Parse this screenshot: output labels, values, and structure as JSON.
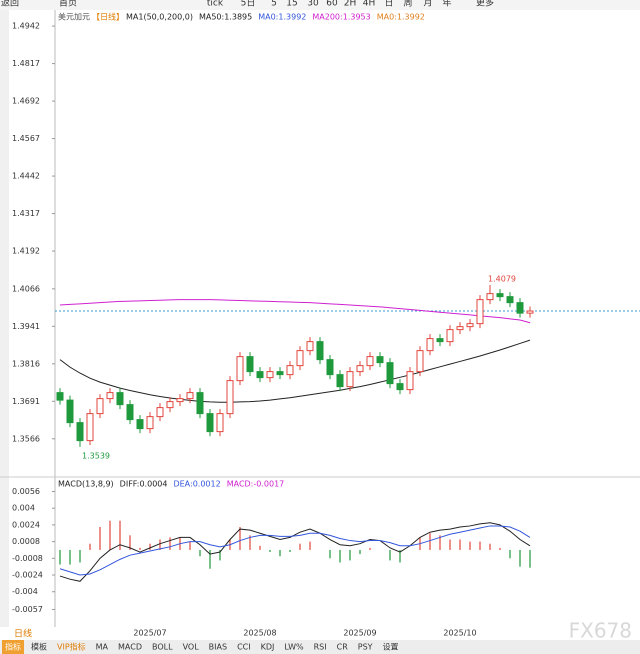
{
  "toolbar": {
    "items": [
      "返回",
      "首页",
      "tick",
      "5日",
      "5",
      "15",
      "30",
      "60",
      "2H",
      "4H",
      "日",
      "周",
      "月",
      "年",
      "更多"
    ]
  },
  "tabs": {
    "period": "日线",
    "items": [
      "指标",
      "模板",
      "VIP指标",
      "MA",
      "MACD",
      "BOLL",
      "VOL",
      "BIAS",
      "CCI",
      "KDJ",
      "LW%",
      "RSI",
      "CR",
      "PSY",
      "设置"
    ]
  },
  "watermark": "FX678",
  "chart_data": [
    {
      "type": "candlestick",
      "symbol": "美元加元",
      "period_label": "【日线】",
      "legend_items": [
        {
          "label": "MA1(50,0,200,0)",
          "color": "#222222"
        },
        {
          "label": "MA50:1.3895",
          "color": "#222222"
        },
        {
          "label": "MA0:1.3992",
          "color": "#3355dd"
        },
        {
          "label": "MA200:1.3953",
          "color": "#d020d0"
        },
        {
          "label": "MA0:1.3992",
          "color": "#e08020"
        }
      ],
      "ylim": [
        1.3462,
        1.4989
      ],
      "yticks": [
        1.4942,
        1.4817,
        1.4692,
        1.4567,
        1.4442,
        1.4317,
        1.4192,
        1.4066,
        1.3941,
        1.3816,
        1.3691,
        1.3566
      ],
      "up_color": "#e2463c",
      "down_color": "#1e9a3c",
      "open": [
        1.372,
        1.3695,
        1.362,
        1.356,
        1.365,
        1.37,
        1.372,
        1.368,
        1.363,
        1.36,
        1.364,
        1.367,
        1.369,
        1.37,
        1.372,
        1.365,
        1.359,
        1.365,
        1.376,
        1.384,
        1.379,
        1.377,
        1.379,
        1.378,
        1.381,
        1.386,
        1.389,
        1.383,
        1.378,
        1.374,
        1.379,
        1.381,
        1.384,
        1.382,
        1.375,
        1.373,
        1.379,
        1.386,
        1.39,
        1.389,
        1.393,
        1.394,
        1.395,
        1.403,
        1.405,
        1.404,
        1.402,
        1.3985
      ],
      "high": [
        1.3735,
        1.371,
        1.3635,
        1.3665,
        1.3715,
        1.3735,
        1.3735,
        1.3695,
        1.3645,
        1.3655,
        1.3685,
        1.3705,
        1.3715,
        1.3735,
        1.3735,
        1.3665,
        1.3665,
        1.3775,
        1.3855,
        1.3855,
        1.3805,
        1.3805,
        1.3805,
        1.3825,
        1.3875,
        1.3905,
        1.3905,
        1.3845,
        1.3795,
        1.3805,
        1.3825,
        1.3855,
        1.3855,
        1.3835,
        1.3765,
        1.3805,
        1.3875,
        1.3915,
        1.3915,
        1.3945,
        1.3955,
        1.3965,
        1.4045,
        1.4079,
        1.4065,
        1.4055,
        1.4035,
        1.4007
      ],
      "low": [
        1.368,
        1.3605,
        1.3539,
        1.3545,
        1.3635,
        1.3685,
        1.3665,
        1.3615,
        1.3585,
        1.3585,
        1.3625,
        1.3655,
        1.3675,
        1.3685,
        1.3635,
        1.3575,
        1.3575,
        1.3635,
        1.3745,
        1.3775,
        1.3755,
        1.3755,
        1.3765,
        1.3765,
        1.3795,
        1.3845,
        1.3815,
        1.3765,
        1.3725,
        1.3725,
        1.3775,
        1.3795,
        1.3805,
        1.3735,
        1.3715,
        1.3715,
        1.3775,
        1.3845,
        1.3875,
        1.3875,
        1.3915,
        1.3925,
        1.3935,
        1.4015,
        1.4025,
        1.4005,
        1.397,
        1.397
      ],
      "close": [
        1.3695,
        1.362,
        1.356,
        1.365,
        1.37,
        1.372,
        1.368,
        1.363,
        1.36,
        1.364,
        1.367,
        1.369,
        1.37,
        1.372,
        1.365,
        1.359,
        1.365,
        1.376,
        1.384,
        1.379,
        1.377,
        1.379,
        1.378,
        1.381,
        1.386,
        1.389,
        1.383,
        1.378,
        1.374,
        1.379,
        1.381,
        1.384,
        1.382,
        1.375,
        1.373,
        1.379,
        1.386,
        1.39,
        1.389,
        1.393,
        1.394,
        1.395,
        1.403,
        1.405,
        1.404,
        1.402,
        1.3985,
        1.3992
      ],
      "last_price": 1.3992,
      "series": [
        {
          "name": "MA50",
          "color": "#222222",
          "values": [
            1.383,
            1.3805,
            1.3785,
            1.3768,
            1.3755,
            1.3745,
            1.3735,
            1.3727,
            1.372,
            1.3713,
            1.3707,
            1.3702,
            1.3698,
            1.3694,
            1.3691,
            1.3689,
            1.3688,
            1.3688,
            1.3689,
            1.369,
            1.3692,
            1.3695,
            1.3699,
            1.3703,
            1.3708,
            1.3713,
            1.3718,
            1.3723,
            1.3728,
            1.3734,
            1.374,
            1.3747,
            1.3755,
            1.3763,
            1.3771,
            1.3779,
            1.3788,
            1.3797,
            1.3806,
            1.3815,
            1.3824,
            1.3833,
            1.3842,
            1.3852,
            1.3862,
            1.3873,
            1.3884,
            1.3895
          ]
        },
        {
          "name": "MA200",
          "color": "#d020d0",
          "values": [
            1.4012,
            1.4014,
            1.4016,
            1.4018,
            1.402,
            1.4022,
            1.4024,
            1.4025,
            1.4026,
            1.4027,
            1.4028,
            1.4029,
            1.403,
            1.403,
            1.403,
            1.403,
            1.4029,
            1.4028,
            1.4027,
            1.4026,
            1.4025,
            1.4024,
            1.4023,
            1.4022,
            1.4021,
            1.402,
            1.4018,
            1.4016,
            1.4014,
            1.4012,
            1.401,
            1.4008,
            1.4006,
            1.4003,
            1.4,
            1.3997,
            1.3994,
            1.3991,
            1.3988,
            1.3985,
            1.3982,
            1.3979,
            1.3976,
            1.3973,
            1.397,
            1.3966,
            1.3962,
            1.3953
          ]
        }
      ]
    },
    {
      "type": "macd",
      "legend_items": [
        {
          "label": "MACD(13,8,9)",
          "color": "#222222"
        },
        {
          "label": "DIFF:0.0004",
          "color": "#222222"
        },
        {
          "label": "DEA:0.0012",
          "color": "#3355dd"
        },
        {
          "label": "MACD:-0.0017",
          "color": "#d020d0"
        }
      ],
      "ylim": [
        -0.0069,
        0.0067
      ],
      "yticks": [
        0.0056,
        0.004,
        0.0024,
        0.0008,
        -0.0008,
        -0.0024,
        -0.004,
        -0.0057
      ],
      "categories": [
        null,
        null,
        null,
        null,
        null,
        null,
        null,
        null,
        null,
        "2025/07",
        null,
        null,
        null,
        null,
        null,
        null,
        null,
        null,
        null,
        null,
        "2025/08",
        null,
        null,
        null,
        null,
        null,
        null,
        null,
        null,
        null,
        "2025/09",
        null,
        null,
        null,
        null,
        null,
        null,
        null,
        null,
        null,
        "2025/10",
        null,
        null,
        null,
        null,
        null,
        null,
        null
      ],
      "up_color": "#e2463c",
      "down_color": "#1e9a3c",
      "histogram": [
        -0.0014,
        -0.0014,
        -0.0012,
        0.0006,
        0.0022,
        0.0028,
        0.0028,
        0.0014,
        0.0002,
        0.0006,
        0.001,
        0.0012,
        0.0012,
        0.0008,
        -0.0006,
        -0.0018,
        -0.001,
        0.001,
        0.0022,
        0.0014,
        0.0004,
        -0.0002,
        -0.0006,
        -0.0002,
        0.0006,
        0.0008,
        0.0,
        -0.0008,
        -0.0012,
        -0.001,
        -0.0004,
        0.0002,
        0.0,
        -0.001,
        -0.0012,
        0.0,
        0.0012,
        0.0016,
        0.0014,
        0.001,
        0.001,
        0.0008,
        0.0008,
        0.0006,
        0.0002,
        -0.0008,
        -0.0016,
        -0.0017
      ],
      "series": [
        {
          "name": "DIFF",
          "color": "#222222",
          "values": [
            -0.0025,
            -0.0028,
            -0.003,
            -0.002,
            -0.0008,
            0.0,
            0.0005,
            0.0002,
            -0.0002,
            0.0002,
            0.0006,
            0.0009,
            0.0012,
            0.0012,
            0.0005,
            -0.0004,
            -0.0002,
            0.001,
            0.002,
            0.0019,
            0.0016,
            0.0013,
            0.001,
            0.0012,
            0.0017,
            0.002,
            0.0016,
            0.001,
            0.0005,
            0.0004,
            0.0006,
            0.001,
            0.0009,
            0.0002,
            -0.0002,
            0.0004,
            0.0012,
            0.0017,
            0.0019,
            0.002,
            0.0022,
            0.0023,
            0.0025,
            0.0026,
            0.0024,
            0.0018,
            0.001,
            0.0004
          ]
        },
        {
          "name": "DEA",
          "color": "#3355dd",
          "values": [
            -0.0018,
            -0.0021,
            -0.0024,
            -0.0023,
            -0.0019,
            -0.0014,
            -0.0009,
            -0.0005,
            -0.0003,
            -0.0001,
            0.0001,
            0.0003,
            0.0006,
            0.0008,
            0.0008,
            0.0005,
            0.0003,
            0.0005,
            0.0009,
            0.0012,
            0.0014,
            0.0014,
            0.0013,
            0.0013,
            0.0014,
            0.0016,
            0.0016,
            0.0014,
            0.0011,
            0.0009,
            0.0008,
            0.0009,
            0.0009,
            0.0007,
            0.0004,
            0.0004,
            0.0006,
            0.0009,
            0.0012,
            0.0015,
            0.0017,
            0.0019,
            0.0021,
            0.0023,
            0.0023,
            0.0022,
            0.0018,
            0.0012
          ]
        }
      ]
    }
  ]
}
